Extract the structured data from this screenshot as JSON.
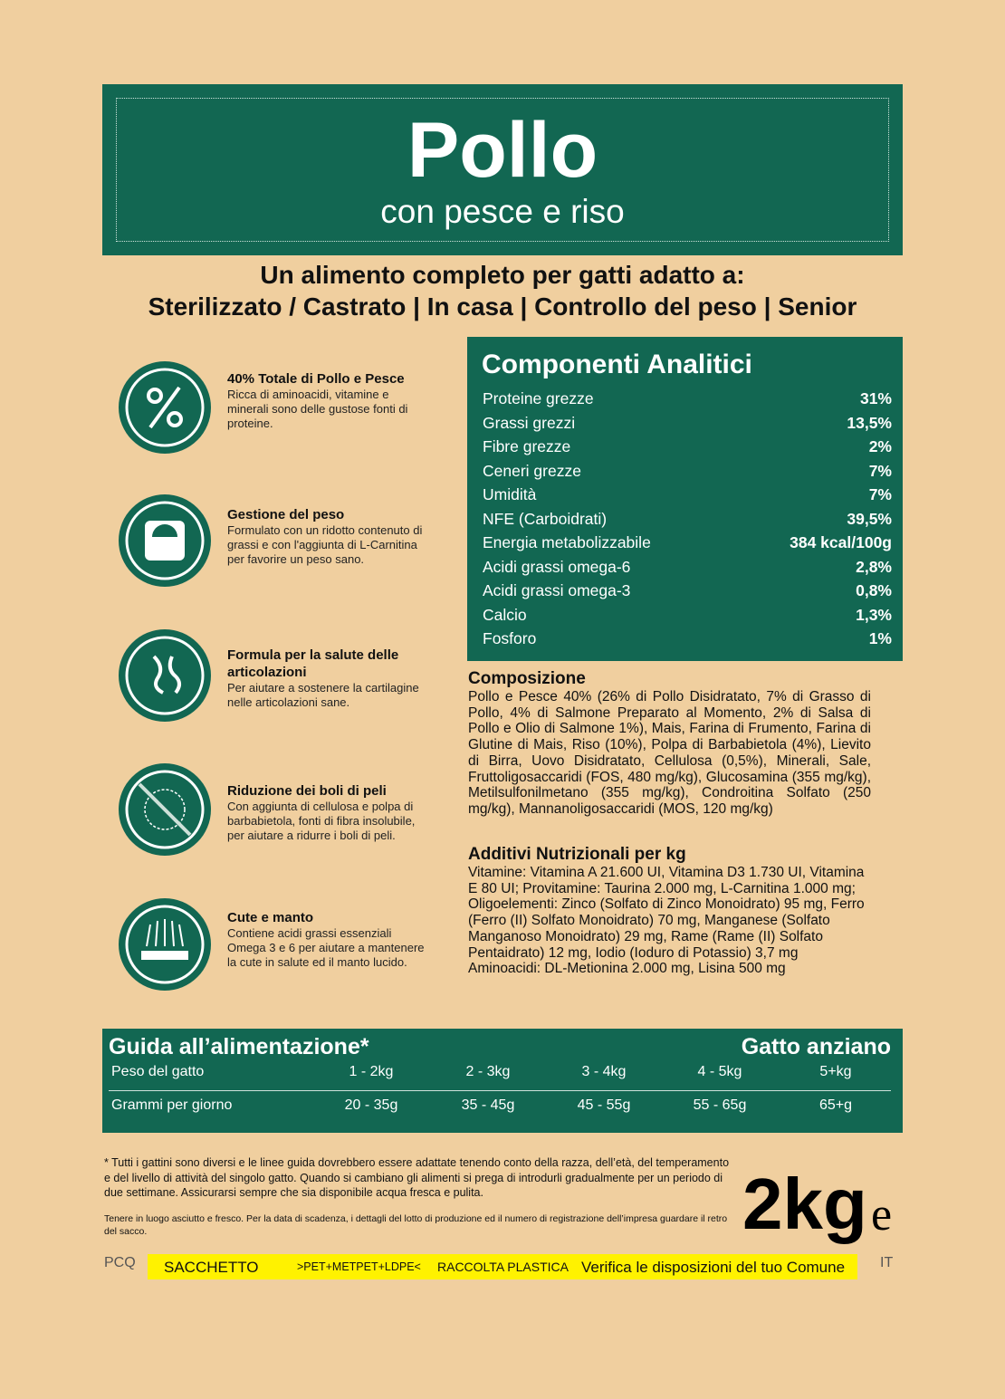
{
  "header": {
    "title": "Pollo",
    "subtitle": "con pesce e riso"
  },
  "suitability": {
    "heading": "Un alimento completo per gatti adatto a:",
    "targets": "Sterilizzato / Castrato | In casa | Controllo del peso | Senior"
  },
  "features": [
    {
      "title": "40% Totale di Pollo e Pesce",
      "text": "Ricca di aminoacidi, vitamine e minerali sono delle gustose fonti di proteine."
    },
    {
      "title": "Gestione del peso",
      "text": "Formulato con un ridotto contenuto di grassi e con l'aggiunta di L-Carnitina per favorire un peso sano."
    },
    {
      "title": "Formula per la salute delle articolazioni",
      "text": "Per aiutare a sostenere la cartilagine nelle articolazioni sane."
    },
    {
      "title": "Riduzione dei boli di peli",
      "text": "Con aggiunta di cellulosa e polpa di barbabietola, fonti di fibra insolubile, per aiutare a ridurre i boli di peli."
    },
    {
      "title": "Cute e manto",
      "text": "Contiene acidi grassi essenziali Omega 3 e 6 per aiutare a mantenere la cute in salute ed il manto lucido."
    }
  ],
  "analytics": {
    "title": "Componenti Analitici",
    "rows": [
      [
        "Proteine grezze",
        "31%"
      ],
      [
        "Grassi grezzi",
        "13,5%"
      ],
      [
        "Fibre grezze",
        "2%"
      ],
      [
        "Ceneri grezze",
        "7%"
      ],
      [
        "Umidità",
        "7%"
      ],
      [
        "NFE (Carboidrati)",
        "39,5%"
      ],
      [
        "Energia metabolizzabile",
        "384 kcal/100g"
      ],
      [
        "Acidi grassi omega-6",
        "2,8%"
      ],
      [
        "Acidi grassi omega-3",
        "0,8%"
      ],
      [
        "Calcio",
        "1,3%"
      ],
      [
        "Fosforo",
        "1%"
      ]
    ]
  },
  "composition": {
    "title": "Composizione",
    "text": "Pollo e Pesce 40% (26% di Pollo Disidratato, 7% di Grasso di Pollo, 4% di Salmone Preparato al Momento, 2% di Salsa di Pollo e Olio di Salmone 1%), Mais, Farina di Frumento, Farina di Glutine di Mais, Riso (10%), Polpa di Barbabietola (4%), Lievito di Birra, Uovo Disidratato, Cellulosa (0,5%), Minerali, Sale, Fruttoligosaccaridi (FOS, 480 mg/kg), Glucosamina (355 mg/kg), Metilsulfonilmetano (355 mg/kg), Condroitina Solfato (250 mg/kg), Mannanoligosaccaridi (MOS, 120 mg/kg)"
  },
  "additives": {
    "title": "Additivi Nutrizionali per kg",
    "text": "Vitamine: Vitamina A 21.600 UI, Vitamina D3 1.730 UI, Vitamina E 80 UI; Provitamine: Taurina 2.000 mg, L-Carnitina 1.000 mg; Oligoelementi: Zinco (Solfato di Zinco Monoidrato) 95 mg, Ferro (Ferro (II) Solfato Monoidrato) 70 mg, Manganese (Solfato Manganoso Monoidrato) 29 mg, Rame (Rame (II) Solfato Pentaidrato) 12 mg, Iodio (Ioduro di Potassio) 3,7 mg Aminoacidi: DL-Metionina 2.000 mg, Lisina 500 mg"
  },
  "feeding": {
    "title": "Guida all’alimentazione*",
    "category": "Gatto anziano",
    "rows": [
      [
        "Peso del gatto",
        "1 - 2kg",
        "2 - 3kg",
        "3 - 4kg",
        "4 - 5kg",
        "5+kg"
      ],
      [
        "Grammi per giorno",
        "20 - 35g",
        "35 - 45g",
        "45 - 55g",
        "55 - 65g",
        "65+g"
      ]
    ]
  },
  "footnote": "* Tutti i gattini sono diversi e le linee guida dovrebbero essere adattate tenendo conto della razza, dell’età, del temperamento e del livello di attività del singolo gatto. Quando si cambiano gli alimenti si prega di introdurli gradualmente per un periodo di due settimane. Assicurarsi sempre che sia disponibile acqua fresca e pulita.",
  "storage": "Tenere in luogo asciutto e fresco. Per la data di scadenza, i dettagli del lotto di produzione ed il numero di registrazione dell’impresa guardare il retro del sacco.",
  "weight": {
    "value": "2kg",
    "mark": "e"
  },
  "recycling": {
    "code": "PCQ",
    "packaging": "SACCHETTO",
    "material": ">PET+METPET+LDPE<",
    "collection": "RACCOLTA PLASTICA",
    "note": "Verifica le disposizioni del tuo Comune",
    "country": "IT"
  }
}
